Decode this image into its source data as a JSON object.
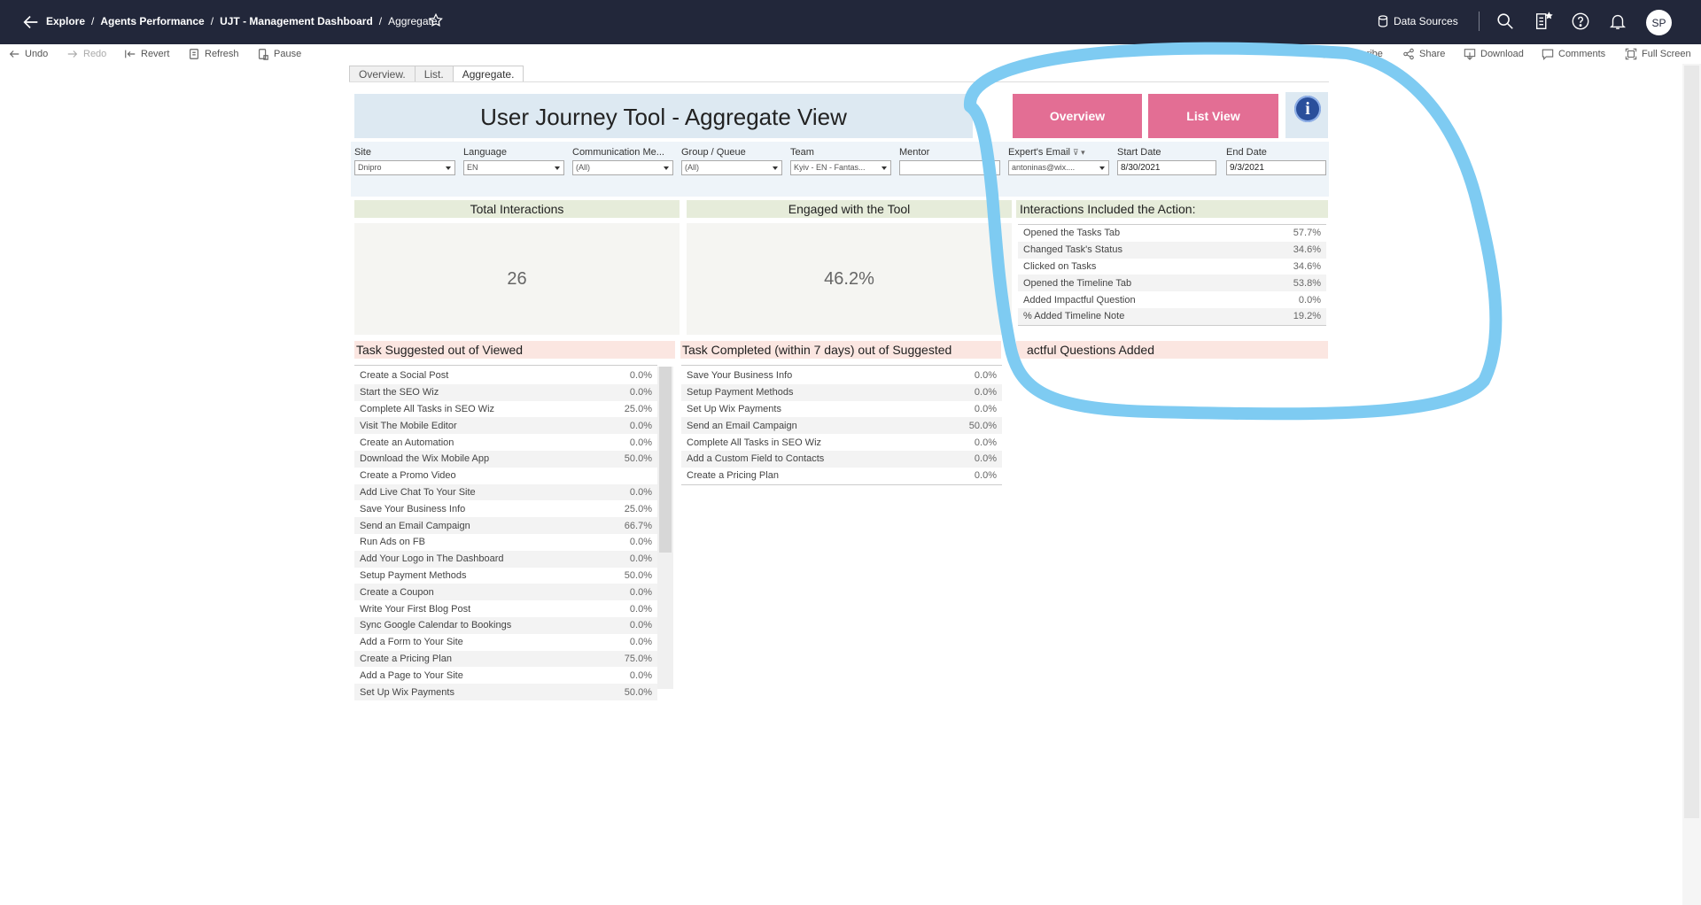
{
  "breadcrumb": {
    "items": [
      "Explore",
      "Agents Performance",
      "UJT - Management Dashboard"
    ],
    "current": "Aggregate."
  },
  "topbar": {
    "data_sources": "Data Sources",
    "avatar_initials": "SP"
  },
  "toolbar": {
    "undo": "Undo",
    "redo": "Redo",
    "revert": "Revert",
    "refresh": "Refresh",
    "pause": "Pause",
    "subscribe": "Subscribe",
    "share": "Share",
    "download": "Download",
    "comments": "Comments",
    "full_screen": "Full Screen"
  },
  "sheet_tabs": [
    "Overview.",
    "List.",
    "Aggregate."
  ],
  "dashboard": {
    "title": "User Journey Tool -  Aggregate View",
    "overview_button": "Overview",
    "list_view_button": "List View",
    "accent_color": "#e36e94"
  },
  "filters": {
    "site": {
      "label": "Site",
      "value": "Dnipro"
    },
    "language": {
      "label": "Language",
      "value": "EN"
    },
    "communication": {
      "label": "Communication Me...",
      "value": "(All)"
    },
    "group_queue": {
      "label": "Group / Queue",
      "value": "(All)"
    },
    "team": {
      "label": "Team",
      "value": "Kyiv - EN - Fantas..."
    },
    "mentor": {
      "label": "Mentor",
      "value": ""
    },
    "experts_email": {
      "label": "Expert's Email",
      "value": "antoninas@wix...."
    },
    "start_date": {
      "label": "Start Date",
      "value": "8/30/2021"
    },
    "end_date": {
      "label": "End Date",
      "value": "9/3/2021"
    }
  },
  "total_interactions": {
    "header": "Total Interactions",
    "value": "26"
  },
  "engaged": {
    "header": "Engaged with the Tool",
    "value": "46.2%"
  },
  "interactions_action": {
    "header": "Interactions Included the Action:",
    "rows": [
      {
        "label": "Opened the Tasks Tab",
        "value": "57.7%"
      },
      {
        "label": "Changed Task's Status",
        "value": "34.6%"
      },
      {
        "label": "Clicked on Tasks",
        "value": "34.6%"
      },
      {
        "label": "Opened the Timeline Tab",
        "value": "53.8%"
      },
      {
        "label": "Added Impactful Question",
        "value": "0.0%"
      },
      {
        "label": "% Added Timeline Note",
        "value": "19.2%"
      }
    ]
  },
  "task_suggested": {
    "header": "Task Suggested out of Viewed",
    "rows": [
      {
        "label": "Create a Social Post",
        "value": "0.0%"
      },
      {
        "label": "Start the SEO Wiz",
        "value": "0.0%"
      },
      {
        "label": "Complete All Tasks in SEO Wiz",
        "value": "25.0%"
      },
      {
        "label": "Visit The Mobile Editor",
        "value": "0.0%"
      },
      {
        "label": "Create an Automation",
        "value": "0.0%"
      },
      {
        "label": "Download the Wix Mobile App",
        "value": "50.0%"
      },
      {
        "label": "Create a Promo Video",
        "value": ""
      },
      {
        "label": "Add Live Chat To Your Site",
        "value": "0.0%"
      },
      {
        "label": "Save Your Business Info",
        "value": "25.0%"
      },
      {
        "label": "Send an Email Campaign",
        "value": "66.7%"
      },
      {
        "label": "Run Ads on FB",
        "value": "0.0%"
      },
      {
        "label": "Add Your Logo in The Dashboard",
        "value": "0.0%"
      },
      {
        "label": "Setup Payment Methods",
        "value": "50.0%"
      },
      {
        "label": "Create a Coupon",
        "value": "0.0%"
      },
      {
        "label": "Write Your First Blog Post",
        "value": "0.0%"
      },
      {
        "label": "Sync Google Calendar to Bookings",
        "value": "0.0%"
      },
      {
        "label": "Add a Form to Your Site",
        "value": "0.0%"
      },
      {
        "label": "Create a Pricing Plan",
        "value": "75.0%"
      },
      {
        "label": "Add a Page to Your Site",
        "value": "0.0%"
      },
      {
        "label": "Set Up Wix Payments",
        "value": "50.0%"
      }
    ]
  },
  "task_completed": {
    "header": "Task Completed (within 7 days) out of Suggested",
    "rows": [
      {
        "label": "Save Your Business Info",
        "value": "0.0%"
      },
      {
        "label": "Setup Payment Methods",
        "value": "0.0%"
      },
      {
        "label": "Set Up Wix Payments",
        "value": "0.0%"
      },
      {
        "label": "Send an Email Campaign",
        "value": "50.0%"
      },
      {
        "label": "Complete All Tasks in SEO Wiz",
        "value": "0.0%"
      },
      {
        "label": "Add a Custom Field to Contacts",
        "value": "0.0%"
      },
      {
        "label": "Create a Pricing Plan",
        "value": "0.0%"
      }
    ]
  },
  "impactful_questions": {
    "header": "Impactful Questions Added",
    "visible_header": "actful Questions Added"
  },
  "annotation_color": "#7ecbf2"
}
